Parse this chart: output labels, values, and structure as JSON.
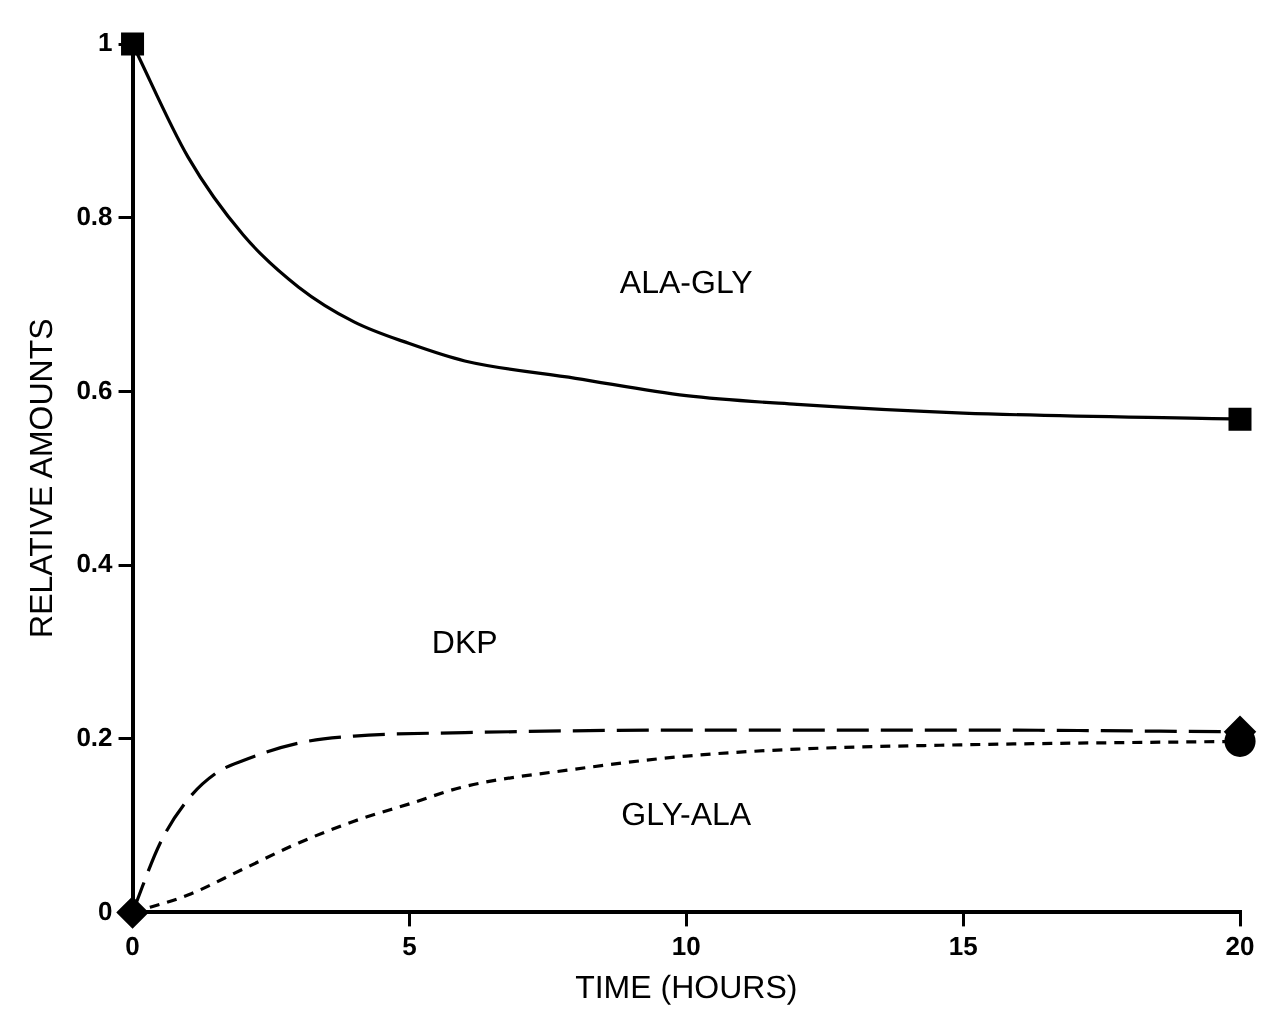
{
  "chart_data": {
    "type": "line",
    "xlabel": "TIME (HOURS)",
    "ylabel": "RELATIVE AMOUNTS",
    "xlim": [
      0,
      20
    ],
    "xticks": [
      0,
      5,
      10,
      15,
      20
    ],
    "ylim": [
      0,
      1
    ],
    "yticks": [
      0,
      0.2,
      0.4,
      0.6,
      0.8,
      1
    ],
    "grid": false,
    "legend": false,
    "series": [
      {
        "name": "ALA-GLY",
        "color": "#000000",
        "line_style": "solid",
        "x": [
          0,
          1,
          2,
          3,
          4,
          5,
          6,
          8,
          10,
          12,
          15,
          20
        ],
        "values": [
          1,
          0.87,
          0.78,
          0.72,
          0.68,
          0.655,
          0.635,
          0.615,
          0.595,
          0.585,
          0.575,
          0.568
        ]
      },
      {
        "name": "DKP",
        "color": "#000000",
        "line_style": "dashed",
        "x": [
          0,
          0.5,
          1,
          1.5,
          2,
          3,
          4,
          6,
          10,
          15,
          20
        ],
        "values": [
          0,
          0.08,
          0.13,
          0.16,
          0.175,
          0.195,
          0.203,
          0.207,
          0.21,
          0.21,
          0.208
        ]
      },
      {
        "name": "GLY-ALA",
        "color": "#000000",
        "line_style": "dotted",
        "x": [
          0,
          1,
          2,
          3,
          4,
          5,
          6,
          8,
          10,
          12,
          15,
          20
        ],
        "values": [
          0,
          0.02,
          0.05,
          0.08,
          0.105,
          0.125,
          0.145,
          0.165,
          0.18,
          0.188,
          0.193,
          0.197
        ]
      },
      {
        "type": "scatter",
        "color": "#000000",
        "marker": "square",
        "x": [
          0,
          20
        ],
        "values": [
          1,
          0.568
        ]
      },
      {
        "type": "scatter",
        "color": "#000000",
        "marker": "diamond",
        "x": [
          0,
          20
        ],
        "values": [
          0,
          0.208
        ]
      },
      {
        "type": "scatter",
        "color": "#000000",
        "marker": "circle",
        "x": [
          20
        ],
        "values": [
          0.197
        ]
      }
    ]
  }
}
